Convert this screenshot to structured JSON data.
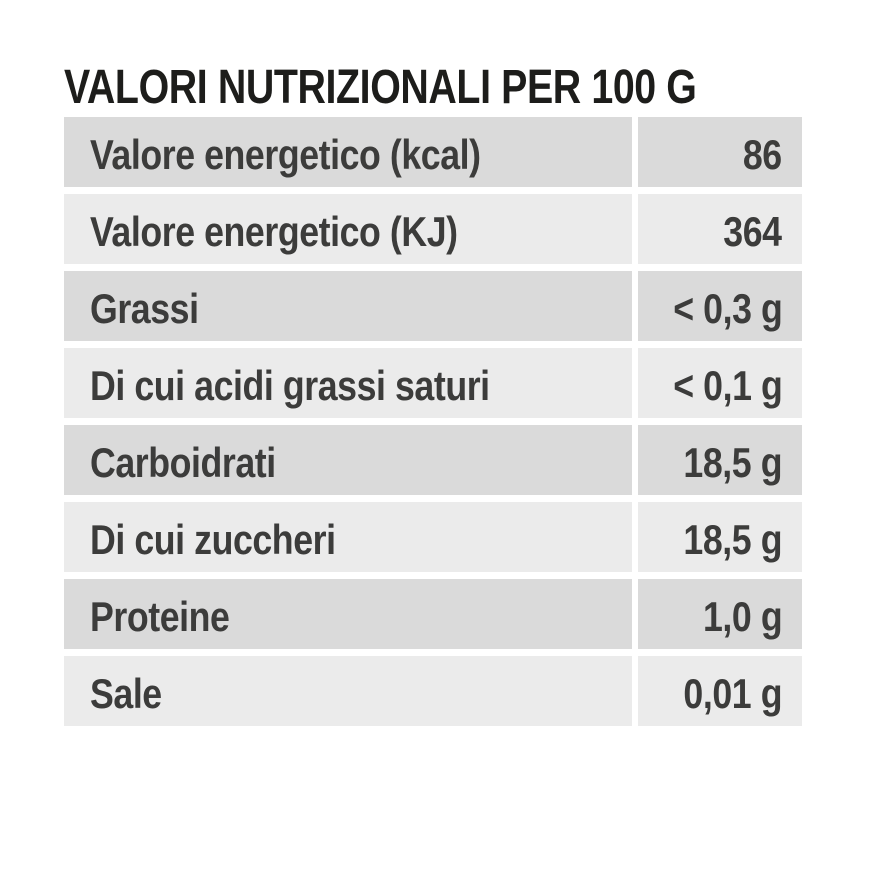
{
  "title": "VALORI NUTRIZIONALI PER 100 G",
  "colors": {
    "background": "#ffffff",
    "row_dark": "#dadada",
    "row_light": "#ebebeb",
    "text": "#3c3c3b",
    "title_text": "#1d1d1b"
  },
  "table": {
    "rows": [
      {
        "label": "Valore energetico (kcal)",
        "value": "86"
      },
      {
        "label": "Valore energetico (KJ)",
        "value": "364"
      },
      {
        "label": "Grassi",
        "value": "< 0,3 g"
      },
      {
        "label": "Di cui acidi grassi saturi",
        "value": "< 0,1 g"
      },
      {
        "label": "Carboidrati",
        "value": "18,5 g"
      },
      {
        "label": "Di cui zuccheri",
        "value": "18,5 g"
      },
      {
        "label": "Proteine",
        "value": "1,0 g"
      },
      {
        "label": "Sale",
        "value": "0,01 g"
      }
    ]
  }
}
